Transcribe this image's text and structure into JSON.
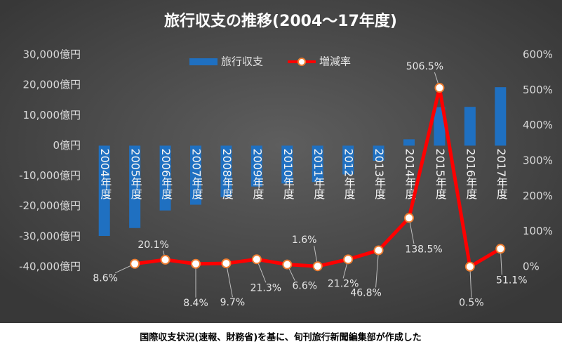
{
  "chart_data": {
    "type": "bar_line",
    "title": "旅行収支の推移(2004～17年度)",
    "caption": "国際収支状況(速報、財務省)を基に、旬刊旅行新聞編集部が作成した",
    "categories": [
      "2004年度",
      "2005年度",
      "2006年度",
      "2007年度",
      "2008年度",
      "2009年度",
      "2010年度",
      "2011年度",
      "2012年度",
      "2013年度",
      "2014年度",
      "2015年度",
      "2016年度",
      "2017年度"
    ],
    "series": [
      {
        "name": "旅行収支",
        "type": "bar",
        "color": "#1f70c1",
        "values": [
          -29800,
          -27200,
          -21400,
          -19500,
          -17000,
          -13500,
          -12500,
          -12000,
          -9500,
          -5000,
          2100,
          12700,
          12800,
          19300
        ]
      },
      {
        "name": "増減率",
        "type": "line",
        "axis": "y2",
        "color": "#ff0000",
        "values": [
          null,
          8.6,
          20.1,
          8.4,
          9.7,
          21.3,
          6.6,
          1.6,
          21.2,
          46.8,
          138.5,
          506.5,
          0.5,
          51.1
        ],
        "value_labels": [
          null,
          "8.6%",
          "20.1%",
          "8.4%",
          "9.7%",
          "21.3%",
          "6.6%",
          "1.6%",
          "21.2%",
          "46.8%",
          "138.5%",
          "506.5%",
          "0.5%",
          "51.1%"
        ]
      }
    ],
    "ylim": [
      -40000,
      30000
    ],
    "yticks": [
      {
        "value": -40000,
        "label": "-40,000億円"
      },
      {
        "value": -30000,
        "label": "-30,000億円"
      },
      {
        "value": -20000,
        "label": "-20,000億円"
      },
      {
        "value": -10000,
        "label": "-10,000億円"
      },
      {
        "value": 0,
        "label": "0億円"
      },
      {
        "value": 10000,
        "label": "10,000億円"
      },
      {
        "value": 20000,
        "label": "20,000億円"
      },
      {
        "value": 30000,
        "label": "30,000億円"
      }
    ],
    "y2lim": [
      0,
      600
    ],
    "y2ticks": [
      {
        "value": 0,
        "label": "0%"
      },
      {
        "value": 100,
        "label": "100%"
      },
      {
        "value": 200,
        "label": "200%"
      },
      {
        "value": 300,
        "label": "300%"
      },
      {
        "value": 400,
        "label": "400%"
      },
      {
        "value": 500,
        "label": "500%"
      },
      {
        "value": 600,
        "label": "600%"
      }
    ],
    "legend": "top"
  }
}
